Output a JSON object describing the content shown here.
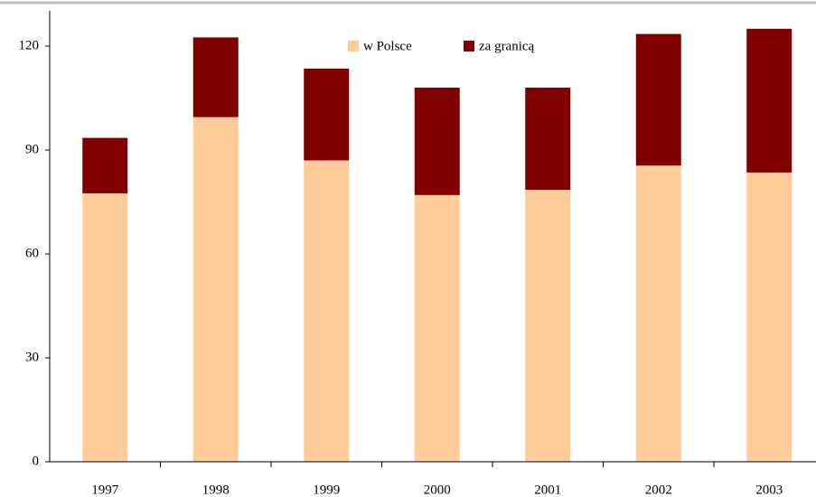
{
  "chart_data": {
    "type": "stacked_bar",
    "categories": [
      "1997",
      "1998",
      "1999",
      "2000",
      "2001",
      "2002",
      "2003"
    ],
    "series": [
      {
        "name": "w Polsce",
        "color": "#ffcc99",
        "values": [
          77.5,
          99.5,
          87,
          77,
          78.5,
          85.5,
          83.5
        ]
      },
      {
        "name": "za granicą",
        "color": "#800000",
        "values": [
          16,
          23,
          26.5,
          31,
          29.5,
          38,
          41.5
        ]
      }
    ],
    "ylim": [
      0,
      120
    ],
    "yticks": [
      0,
      30,
      60,
      90,
      120
    ],
    "grid": false,
    "legend": "top"
  }
}
